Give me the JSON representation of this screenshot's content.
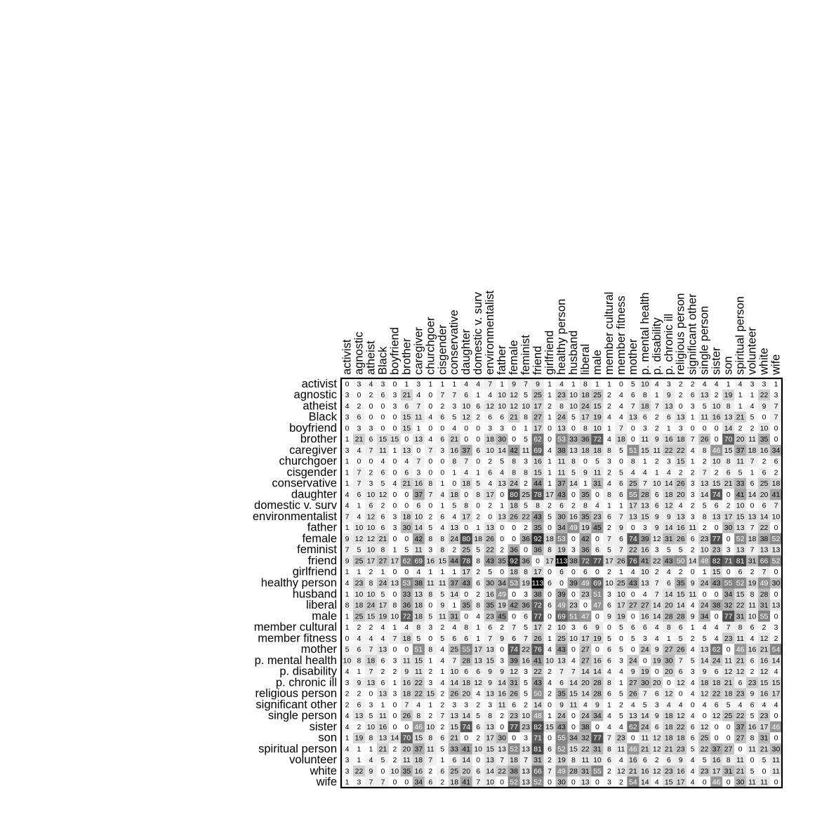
{
  "chart_data": {
    "type": "heatmap",
    "labels": [
      "activist",
      "agnostic",
      "atheist",
      "Black",
      "boyfriend",
      "brother",
      "caregiver",
      "churchgoer",
      "cisgender",
      "conservative",
      "daughter",
      "domestic v. surv",
      "environmentalist",
      "father",
      "female",
      "feminist",
      "friend",
      "girlfriend",
      "healthy person",
      "husband",
      "liberal",
      "male",
      "member cultural",
      "member fitness",
      "mother",
      "p. mental health",
      "p. disability",
      "p. chronic ill",
      "religious person",
      "significant other",
      "single person",
      "sister",
      "son",
      "spiritual person",
      "volunteer",
      "white",
      "wife"
    ],
    "values": [
      [
        0,
        3,
        4,
        3,
        0,
        1,
        3,
        1,
        1,
        1,
        4,
        4,
        7,
        1,
        9,
        7,
        9,
        1,
        4,
        1,
        8,
        1,
        1,
        0,
        5,
        10,
        4,
        3,
        2,
        2,
        4,
        4,
        1,
        4,
        3,
        3,
        1
      ],
      [
        3,
        0,
        2,
        6,
        3,
        21,
        4,
        0,
        7,
        7,
        6,
        1,
        4,
        10,
        12,
        5,
        25,
        1,
        23,
        10,
        18,
        25,
        2,
        4,
        6,
        8,
        1,
        9,
        2,
        6,
        13,
        2,
        19,
        1,
        1,
        22,
        3
      ],
      [
        4,
        2,
        0,
        0,
        3,
        6,
        7,
        0,
        2,
        3,
        10,
        6,
        12,
        10,
        12,
        10,
        17,
        2,
        8,
        10,
        24,
        15,
        2,
        4,
        7,
        18,
        7,
        13,
        0,
        3,
        5,
        10,
        8,
        1,
        4,
        9,
        7
      ],
      [
        3,
        6,
        0,
        0,
        0,
        15,
        11,
        4,
        6,
        5,
        12,
        2,
        6,
        6,
        21,
        8,
        27,
        1,
        24,
        5,
        17,
        19,
        4,
        4,
        13,
        6,
        2,
        6,
        13,
        1,
        11,
        16,
        13,
        21,
        5,
        0,
        7
      ],
      [
        0,
        3,
        3,
        0,
        0,
        15,
        1,
        0,
        0,
        4,
        0,
        0,
        3,
        3,
        0,
        1,
        17,
        0,
        13,
        0,
        8,
        10,
        1,
        7,
        0,
        3,
        2,
        1,
        3,
        0,
        0,
        0,
        14,
        2,
        2,
        10,
        0
      ],
      [
        1,
        21,
        6,
        15,
        15,
        0,
        13,
        4,
        6,
        21,
        0,
        0,
        18,
        30,
        0,
        5,
        62,
        0,
        53,
        33,
        36,
        72,
        4,
        18,
        0,
        11,
        9,
        16,
        18,
        7,
        26,
        0,
        70,
        20,
        11,
        35,
        0
      ],
      [
        3,
        4,
        7,
        11,
        1,
        13,
        0,
        7,
        3,
        16,
        37,
        6,
        10,
        14,
        42,
        11,
        69,
        4,
        38,
        13,
        18,
        18,
        8,
        5,
        51,
        15,
        11,
        22,
        22,
        4,
        8,
        46,
        15,
        37,
        18,
        16,
        34
      ],
      [
        1,
        0,
        0,
        4,
        0,
        4,
        7,
        0,
        0,
        8,
        7,
        0,
        2,
        5,
        8,
        3,
        16,
        1,
        11,
        8,
        0,
        5,
        3,
        0,
        8,
        1,
        2,
        3,
        15,
        1,
        2,
        10,
        8,
        11,
        7,
        2,
        6
      ],
      [
        1,
        7,
        2,
        6,
        0,
        6,
        3,
        0,
        0,
        1,
        4,
        1,
        6,
        4,
        8,
        8,
        15,
        1,
        11,
        5,
        9,
        11,
        2,
        5,
        4,
        4,
        1,
        4,
        2,
        2,
        7,
        2,
        6,
        5,
        1,
        6,
        2
      ],
      [
        1,
        7,
        3,
        5,
        4,
        21,
        16,
        8,
        1,
        0,
        18,
        5,
        4,
        13,
        24,
        2,
        44,
        1,
        37,
        14,
        1,
        31,
        4,
        6,
        25,
        7,
        10,
        14,
        26,
        3,
        13,
        15,
        21,
        33,
        6,
        25,
        18
      ],
      [
        4,
        6,
        10,
        12,
        0,
        0,
        37,
        7,
        4,
        18,
        0,
        8,
        17,
        0,
        80,
        25,
        78,
        17,
        43,
        0,
        35,
        0,
        8,
        6,
        55,
        28,
        6,
        18,
        20,
        3,
        14,
        74,
        0,
        41,
        14,
        20,
        41
      ],
      [
        4,
        1,
        6,
        2,
        0,
        0,
        6,
        0,
        1,
        5,
        8,
        0,
        2,
        1,
        18,
        5,
        8,
        2,
        6,
        2,
        8,
        4,
        1,
        1,
        17,
        13,
        6,
        12,
        4,
        2,
        5,
        6,
        2,
        10,
        0,
        6,
        7
      ],
      [
        7,
        4,
        12,
        6,
        3,
        18,
        10,
        2,
        6,
        4,
        17,
        2,
        0,
        13,
        26,
        22,
        43,
        5,
        30,
        16,
        35,
        23,
        6,
        7,
        13,
        15,
        9,
        9,
        13,
        3,
        8,
        13,
        17,
        15,
        13,
        14,
        10
      ],
      [
        1,
        10,
        10,
        6,
        3,
        30,
        14,
        5,
        4,
        13,
        0,
        1,
        13,
        0,
        0,
        2,
        35,
        0,
        34,
        49,
        19,
        45,
        2,
        9,
        0,
        3,
        9,
        14,
        16,
        11,
        2,
        0,
        30,
        13,
        7,
        22,
        0
      ],
      [
        9,
        12,
        12,
        21,
        0,
        0,
        42,
        8,
        8,
        24,
        80,
        18,
        26,
        0,
        0,
        36,
        92,
        18,
        53,
        0,
        42,
        0,
        7,
        6,
        74,
        39,
        12,
        31,
        26,
        6,
        23,
        77,
        0,
        52,
        18,
        38,
        52
      ],
      [
        7,
        5,
        10,
        8,
        1,
        5,
        11,
        3,
        8,
        2,
        25,
        5,
        22,
        2,
        36,
        0,
        36,
        8,
        19,
        3,
        36,
        6,
        5,
        7,
        22,
        16,
        3,
        5,
        5,
        2,
        10,
        23,
        3,
        13,
        7,
        13,
        13
      ],
      [
        9,
        25,
        17,
        27,
        17,
        62,
        69,
        16,
        15,
        44,
        78,
        8,
        43,
        35,
        92,
        36,
        0,
        17,
        113,
        38,
        72,
        77,
        17,
        26,
        76,
        41,
        22,
        43,
        50,
        14,
        48,
        82,
        71,
        81,
        31,
        66,
        52
      ],
      [
        1,
        1,
        2,
        1,
        0,
        0,
        4,
        1,
        1,
        1,
        17,
        2,
        5,
        0,
        18,
        8,
        17,
        0,
        6,
        0,
        6,
        0,
        2,
        1,
        4,
        10,
        2,
        4,
        2,
        0,
        1,
        15,
        0,
        6,
        2,
        7,
        0
      ],
      [
        4,
        23,
        8,
        24,
        13,
        53,
        38,
        11,
        11,
        37,
        43,
        6,
        30,
        34,
        53,
        19,
        113,
        6,
        0,
        39,
        49,
        69,
        10,
        25,
        43,
        13,
        7,
        6,
        35,
        9,
        24,
        43,
        55,
        52,
        19,
        49,
        30
      ],
      [
        1,
        10,
        10,
        5,
        0,
        33,
        13,
        8,
        5,
        14,
        0,
        2,
        16,
        49,
        0,
        3,
        38,
        0,
        39,
        0,
        23,
        51,
        3,
        10,
        0,
        4,
        7,
        14,
        15,
        11,
        0,
        0,
        34,
        15,
        8,
        28,
        0
      ],
      [
        8,
        18,
        24,
        17,
        8,
        36,
        18,
        0,
        9,
        1,
        35,
        8,
        35,
        19,
        42,
        36,
        72,
        6,
        49,
        23,
        0,
        47,
        6,
        17,
        27,
        27,
        14,
        20,
        14,
        4,
        24,
        38,
        32,
        22,
        11,
        31,
        13
      ],
      [
        1,
        25,
        15,
        19,
        10,
        72,
        18,
        5,
        11,
        31,
        0,
        4,
        23,
        45,
        0,
        6,
        77,
        0,
        69,
        51,
        47,
        0,
        9,
        19,
        0,
        16,
        14,
        28,
        28,
        9,
        34,
        0,
        77,
        31,
        10,
        55,
        0
      ],
      [
        1,
        2,
        2,
        4,
        1,
        4,
        8,
        3,
        2,
        4,
        8,
        1,
        6,
        2,
        7,
        5,
        17,
        2,
        10,
        3,
        6,
        9,
        0,
        5,
        6,
        6,
        4,
        8,
        6,
        1,
        4,
        4,
        7,
        8,
        6,
        2,
        3
      ],
      [
        0,
        4,
        4,
        4,
        7,
        18,
        5,
        0,
        5,
        6,
        6,
        1,
        7,
        9,
        6,
        7,
        26,
        1,
        25,
        10,
        17,
        19,
        5,
        0,
        5,
        3,
        4,
        1,
        5,
        2,
        5,
        4,
        23,
        11,
        4,
        12,
        2
      ],
      [
        5,
        6,
        7,
        13,
        0,
        0,
        51,
        8,
        4,
        25,
        55,
        17,
        13,
        0,
        74,
        22,
        76,
        4,
        43,
        0,
        27,
        0,
        6,
        5,
        0,
        24,
        9,
        27,
        26,
        4,
        13,
        62,
        0,
        46,
        16,
        21,
        54
      ],
      [
        10,
        8,
        18,
        6,
        3,
        11,
        15,
        1,
        4,
        7,
        28,
        13,
        15,
        3,
        39,
        16,
        41,
        10,
        13,
        4,
        27,
        16,
        6,
        3,
        24,
        0,
        19,
        30,
        7,
        5,
        14,
        24,
        11,
        21,
        6,
        16,
        14
      ],
      [
        4,
        1,
        7,
        2,
        2,
        9,
        11,
        2,
        1,
        10,
        6,
        6,
        9,
        9,
        12,
        3,
        22,
        2,
        7,
        7,
        14,
        14,
        4,
        4,
        9,
        19,
        0,
        20,
        6,
        3,
        9,
        6,
        12,
        12,
        2,
        12,
        4
      ],
      [
        3,
        9,
        13,
        6,
        1,
        16,
        22,
        3,
        4,
        14,
        18,
        12,
        9,
        14,
        31,
        5,
        43,
        4,
        6,
        14,
        20,
        28,
        8,
        1,
        27,
        30,
        20,
        0,
        12,
        4,
        18,
        18,
        21,
        6,
        23,
        15,
        15
      ],
      [
        2,
        2,
        0,
        13,
        3,
        18,
        22,
        15,
        2,
        26,
        20,
        4,
        13,
        16,
        26,
        5,
        50,
        2,
        35,
        15,
        14,
        28,
        6,
        5,
        26,
        7,
        6,
        12,
        0,
        4,
        12,
        22,
        18,
        23,
        9,
        16,
        17
      ],
      [
        2,
        6,
        3,
        1,
        0,
        7,
        4,
        1,
        2,
        3,
        3,
        2,
        3,
        11,
        6,
        2,
        14,
        0,
        9,
        11,
        4,
        9,
        1,
        2,
        4,
        5,
        3,
        4,
        4,
        0,
        4,
        6,
        5,
        4,
        6,
        4,
        4
      ],
      [
        4,
        13,
        5,
        11,
        0,
        26,
        8,
        2,
        7,
        13,
        14,
        5,
        8,
        2,
        23,
        10,
        48,
        1,
        24,
        0,
        24,
        34,
        4,
        5,
        13,
        14,
        9,
        18,
        12,
        4,
        0,
        12,
        25,
        22,
        5,
        23,
        0
      ],
      [
        4,
        2,
        10,
        16,
        0,
        0,
        46,
        10,
        2,
        15,
        74,
        6,
        13,
        0,
        77,
        23,
        82,
        15,
        43,
        0,
        38,
        0,
        4,
        4,
        62,
        24,
        6,
        18,
        22,
        6,
        12,
        0,
        0,
        37,
        16,
        17,
        46
      ],
      [
        1,
        19,
        8,
        13,
        14,
        70,
        15,
        8,
        6,
        21,
        0,
        2,
        17,
        30,
        0,
        3,
        71,
        0,
        55,
        34,
        32,
        77,
        7,
        23,
        0,
        11,
        12,
        18,
        18,
        6,
        25,
        0,
        0,
        27,
        8,
        31,
        0
      ],
      [
        4,
        1,
        1,
        21,
        2,
        20,
        37,
        11,
        5,
        33,
        41,
        10,
        15,
        13,
        52,
        13,
        81,
        6,
        52,
        15,
        22,
        31,
        8,
        11,
        46,
        21,
        12,
        21,
        23,
        5,
        22,
        37,
        27,
        0,
        11,
        21,
        30
      ],
      [
        3,
        1,
        4,
        5,
        2,
        11,
        18,
        7,
        1,
        6,
        14,
        0,
        13,
        7,
        18,
        7,
        31,
        2,
        19,
        8,
        11,
        10,
        6,
        4,
        16,
        6,
        2,
        6,
        9,
        4,
        5,
        16,
        8,
        11,
        0,
        5,
        11
      ],
      [
        3,
        22,
        9,
        0,
        10,
        35,
        16,
        2,
        6,
        25,
        20,
        6,
        14,
        22,
        38,
        13,
        66,
        7,
        49,
        28,
        31,
        55,
        2,
        12,
        21,
        16,
        12,
        23,
        16,
        4,
        23,
        17,
        31,
        21,
        5,
        0,
        11
      ],
      [
        1,
        3,
        7,
        7,
        0,
        0,
        34,
        6,
        2,
        18,
        41,
        7,
        10,
        0,
        52,
        13,
        52,
        0,
        30,
        0,
        13,
        0,
        3,
        2,
        54,
        14,
        4,
        15,
        17,
        4,
        0,
        46,
        0,
        30,
        11,
        11,
        0
      ]
    ],
    "grid": false
  }
}
